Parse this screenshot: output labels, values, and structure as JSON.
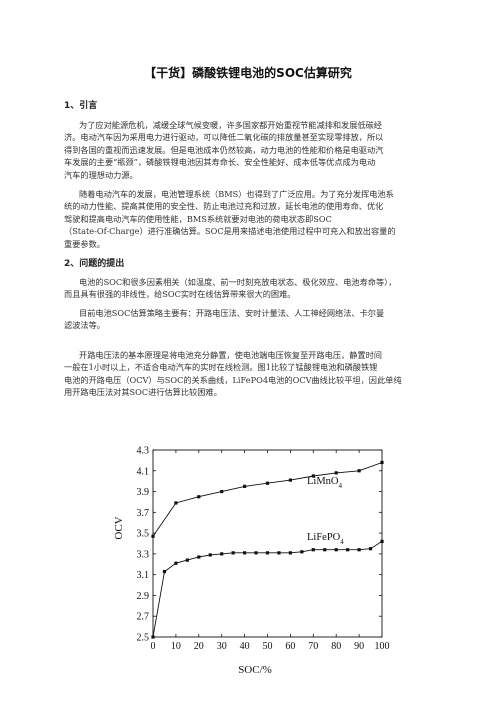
{
  "doc": {
    "title": "【干货】磷酸铁锂电池的SOC估算研究",
    "sections": [
      {
        "heading": "1、引言",
        "paragraphs": [
          [
            "为了应对能源危机，减缓全球气候变暖，许多国家都开始重视节能减排和发展低碳经",
            "济。电动汽车因为采用电力进行驱动，可以降低二氧化碳的排放量甚至实现零排放，所以",
            "得到各国的重视而迅速发展。但是电池成本仍然较高，动力电池的性能和价格是电驱动汽",
            "车发展的主要“瓶颈”，磷酸铁锂电池因其寿命长、安全性能好、成本低等优点成为电动",
            "汽车的理想动力源。"
          ],
          [
            "随着电动汽车的发展，电池管理系统（BMS）也得到了广泛应用。为了充分发挥电池系",
            "统的动力性能、提高其使用的安全性、防止电池过充和过放，延长电池的使用寿命、优化",
            "驾驶和提高电动汽车的使用性能，BMS系统就要对电池的荷电状态即SOC",
            "（State-Of-Charge）进行准确估算。SOC是用来描述电池使用过程中可充入和放出容量的",
            "重要参数。"
          ]
        ]
      },
      {
        "heading": "2、问题的提出",
        "paragraphs": [
          [
            "电池的SOC和很多因素相关（如温度、前一时刻充放电状态、极化效应、电池寿命等），",
            "而且具有很强的非线性，给SOC实时在线估算带来很大的困难。"
          ],
          [
            "目前电池SOC估算策略主要有：开路电压法、安时计量法、人工神经网络法、卡尔曼",
            "滤波法等。"
          ],
          [
            "开路电压法的基本原理是将电池充分静置，使电池端电压恢复至开路电压，静置时间",
            "一般在1小时以上，不适合电动汽车的实时在线检测。图1比较了锰酸锂电池和磷酸铁锂",
            "电池的开路电压（OCV）与SOC的关系曲线，LiFePO4电池的OCV曲线比较平坦，因此单纯",
            "用开路电压法对其SOC进行估算比较困难。"
          ]
        ]
      }
    ]
  },
  "chart_data": {
    "type": "line",
    "xlabel": "SOC/%",
    "ylabel": "OCV",
    "xlim": [
      0,
      100
    ],
    "ylim": [
      2.5,
      4.3
    ],
    "x_ticks": [
      0,
      10,
      20,
      30,
      40,
      50,
      60,
      70,
      80,
      90,
      100
    ],
    "y_ticks": [
      2.5,
      2.7,
      2.9,
      3.1,
      3.3,
      3.5,
      3.7,
      3.9,
      4.1,
      4.3
    ],
    "grid": false,
    "series": [
      {
        "name": "LiMnO4",
        "x": [
          0,
          10,
          20,
          30,
          40,
          50,
          60,
          70,
          80,
          90,
          100
        ],
        "values": [
          3.47,
          3.79,
          3.85,
          3.9,
          3.95,
          3.98,
          4.01,
          4.05,
          4.08,
          4.1,
          4.18
        ]
      },
      {
        "name": "LiFePO4",
        "x": [
          0,
          5,
          10,
          15,
          20,
          25,
          30,
          35,
          40,
          45,
          50,
          55,
          60,
          65,
          70,
          75,
          80,
          85,
          90,
          95,
          100
        ],
        "values": [
          2.5,
          3.13,
          3.21,
          3.24,
          3.27,
          3.29,
          3.3,
          3.31,
          3.31,
          3.31,
          3.31,
          3.31,
          3.31,
          3.32,
          3.34,
          3.34,
          3.34,
          3.34,
          3.34,
          3.35,
          3.42
        ]
      }
    ]
  }
}
